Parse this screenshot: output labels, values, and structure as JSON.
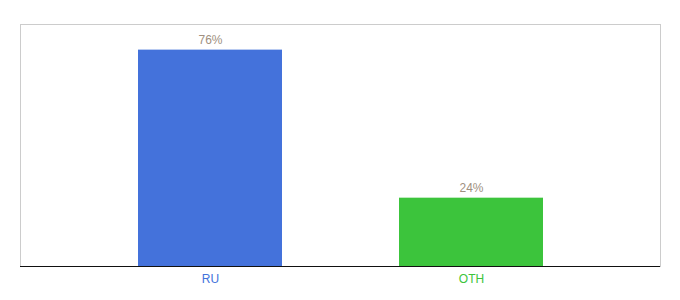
{
  "chart_data": {
    "type": "bar",
    "categories": [
      "RU",
      "OTH"
    ],
    "values": [
      76,
      24
    ],
    "value_labels": [
      "76%",
      "24%"
    ],
    "colors": [
      "#4472db",
      "#3cc43c"
    ],
    "ylim": [
      0,
      85
    ],
    "data_labels": true,
    "tick_labels": "x"
  }
}
